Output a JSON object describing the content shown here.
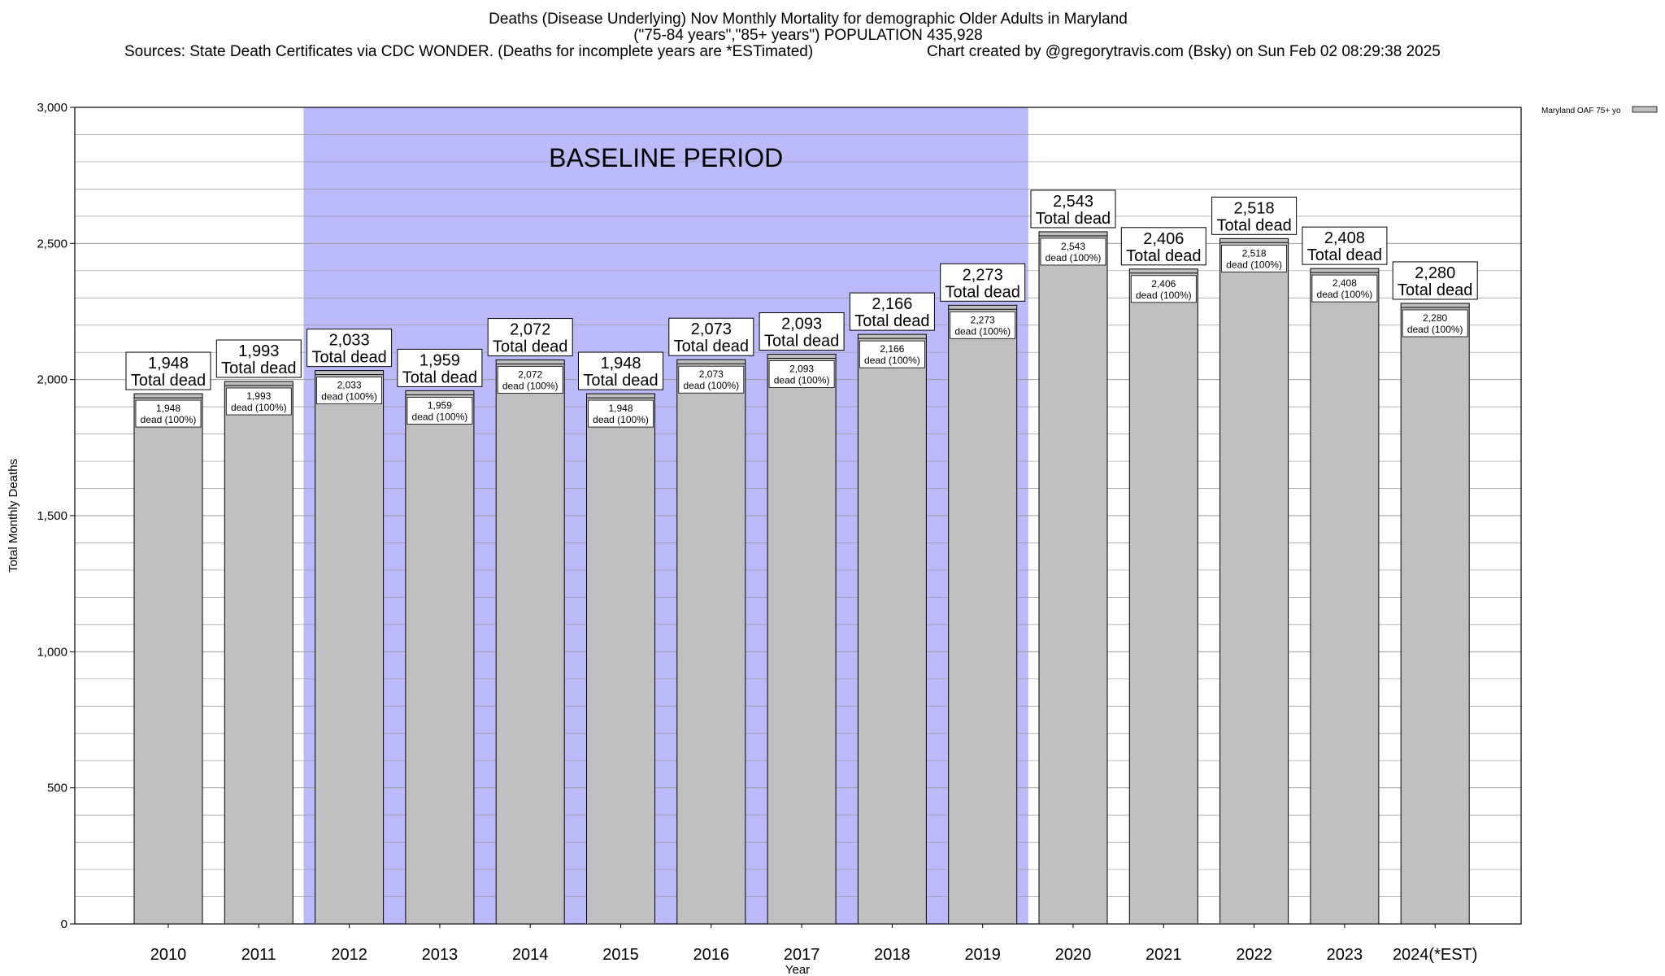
{
  "header": {
    "title_line1": "Deaths (Disease Underlying) Nov Monthly Mortality for demographic Older Adults in Maryland",
    "title_line2": "(\"75-84 years\",\"85+ years\") POPULATION 435,928",
    "sources": "Sources: State Death Certificates via CDC WONDER. (Deaths for incomplete years are *ESTimated)",
    "credit": "Chart created by @gregorytravis.com (Bsky) on Sun Feb 02 08:29:38 2025"
  },
  "chart_data": {
    "type": "bar",
    "xlabel": "Year",
    "ylabel": "Total Monthly Deaths",
    "ylim": [
      0,
      3000
    ],
    "y_ticks": [
      0,
      500,
      1000,
      1500,
      2000,
      2500,
      3000
    ],
    "y_tick_labels": [
      "0",
      "500",
      "1,000",
      "1,500",
      "2,000",
      "2,500",
      "3,000"
    ],
    "grid": true,
    "legend": {
      "position": "top-right",
      "entries": [
        "Maryland OAF 75+ yo"
      ]
    },
    "categories": [
      "2010",
      "2011",
      "2012",
      "2013",
      "2014",
      "2015",
      "2016",
      "2017",
      "2018",
      "2019",
      "2020",
      "2021",
      "2022",
      "2023",
      "2024(*EST)"
    ],
    "series": [
      {
        "name": "Maryland OAF 75+ yo",
        "values": [
          1948,
          1993,
          2033,
          1959,
          2072,
          1948,
          2073,
          2093,
          2166,
          2273,
          2543,
          2406,
          2518,
          2408,
          2280
        ],
        "value_labels": [
          "1,948",
          "1,993",
          "2,033",
          "1,959",
          "2,072",
          "1,948",
          "2,073",
          "2,093",
          "2,166",
          "2,273",
          "2,543",
          "2,406",
          "2,518",
          "2,408",
          "2,280"
        ],
        "color": "#c0c0c0"
      }
    ],
    "total_label_suffix": "Total dead",
    "inner_label_suffix": "dead (100%)",
    "baseline": {
      "label": "BASELINE PERIOD",
      "from": "2012",
      "to": "2019",
      "color": "#bbbbfb"
    }
  }
}
